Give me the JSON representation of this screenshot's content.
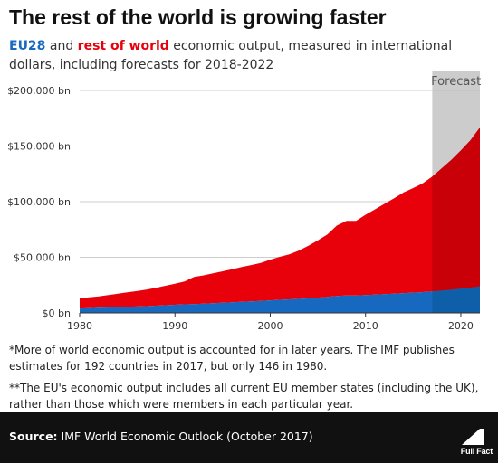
{
  "title": "The rest of the world is growing faster",
  "subtitle": {
    "eu_label": "EU28",
    "and": " and ",
    "row_label": "rest of world",
    "rest": " economic output, measured in international dollars, including forecasts for 2018-2022"
  },
  "colors": {
    "eu": "#1769c0",
    "eu_forecast": "#0f5fa8",
    "row": "#e8000b",
    "row_forecast": "#c90008",
    "forecast_band": "#cccccc"
  },
  "chart_data": {
    "type": "area",
    "stacked": true,
    "title": "",
    "xlabel": "",
    "ylabel": "",
    "x": [
      1980,
      1981,
      1982,
      1983,
      1984,
      1985,
      1986,
      1987,
      1988,
      1989,
      1990,
      1991,
      1992,
      1993,
      1994,
      1995,
      1996,
      1997,
      1998,
      1999,
      2000,
      2001,
      2002,
      2003,
      2004,
      2005,
      2006,
      2007,
      2008,
      2009,
      2010,
      2011,
      2012,
      2013,
      2014,
      2015,
      2016,
      2017,
      2018,
      2019,
      2020,
      2021,
      2022
    ],
    "series": [
      {
        "name": "EU28",
        "values": [
          4000,
          4300,
          4600,
          4900,
          5200,
          5500,
          5800,
          6100,
          6500,
          6900,
          7300,
          7700,
          8000,
          8300,
          8700,
          9100,
          9500,
          9900,
          10300,
          10700,
          11300,
          11800,
          12200,
          12600,
          13100,
          13700,
          14400,
          15200,
          15700,
          15600,
          16000,
          16500,
          16900,
          17300,
          17800,
          18200,
          18700,
          19300,
          20000,
          20800,
          21700,
          22700,
          23700
        ]
      },
      {
        "name": "rest of world",
        "values": [
          9000,
          9700,
          10300,
          11100,
          12000,
          13000,
          13800,
          14800,
          16000,
          17500,
          19000,
          20600,
          24300,
          25400,
          26800,
          28300,
          29800,
          31300,
          32700,
          34300,
          36600,
          38600,
          40500,
          43400,
          47300,
          51600,
          56200,
          63300,
          67000,
          67200,
          72200,
          76600,
          81200,
          85700,
          90600,
          94000,
          97800,
          103300,
          110000,
          116700,
          124300,
          132300,
          143000
        ]
      }
    ],
    "x_ticks": [
      1980,
      1990,
      2000,
      2010,
      2020
    ],
    "y_ticks": [
      0,
      50000,
      100000,
      150000,
      200000
    ],
    "y_tick_labels": [
      "$0 bn",
      "$50,000 bn",
      "$100,000 bn",
      "$150,000 bn",
      "$200,000 bn"
    ],
    "xlim": [
      1980,
      2022
    ],
    "ylim": [
      0,
      200000
    ],
    "forecast": {
      "label": "Forecast",
      "start": 2017,
      "end": 2022
    },
    "grid": "horizontal"
  },
  "footnotes": [
    "*More of world economic output is accounted for in later years. The IMF publishes estimates for 192 countries in 2017, but only 146 in 1980.",
    "**The EU's economic output includes all current EU member states (including the UK), rather than those which were members in each particular year."
  ],
  "source": {
    "label": "Source:",
    "text": " IMF World Economic Outlook (October 2017)"
  },
  "logo": {
    "text": "Full Fact"
  }
}
